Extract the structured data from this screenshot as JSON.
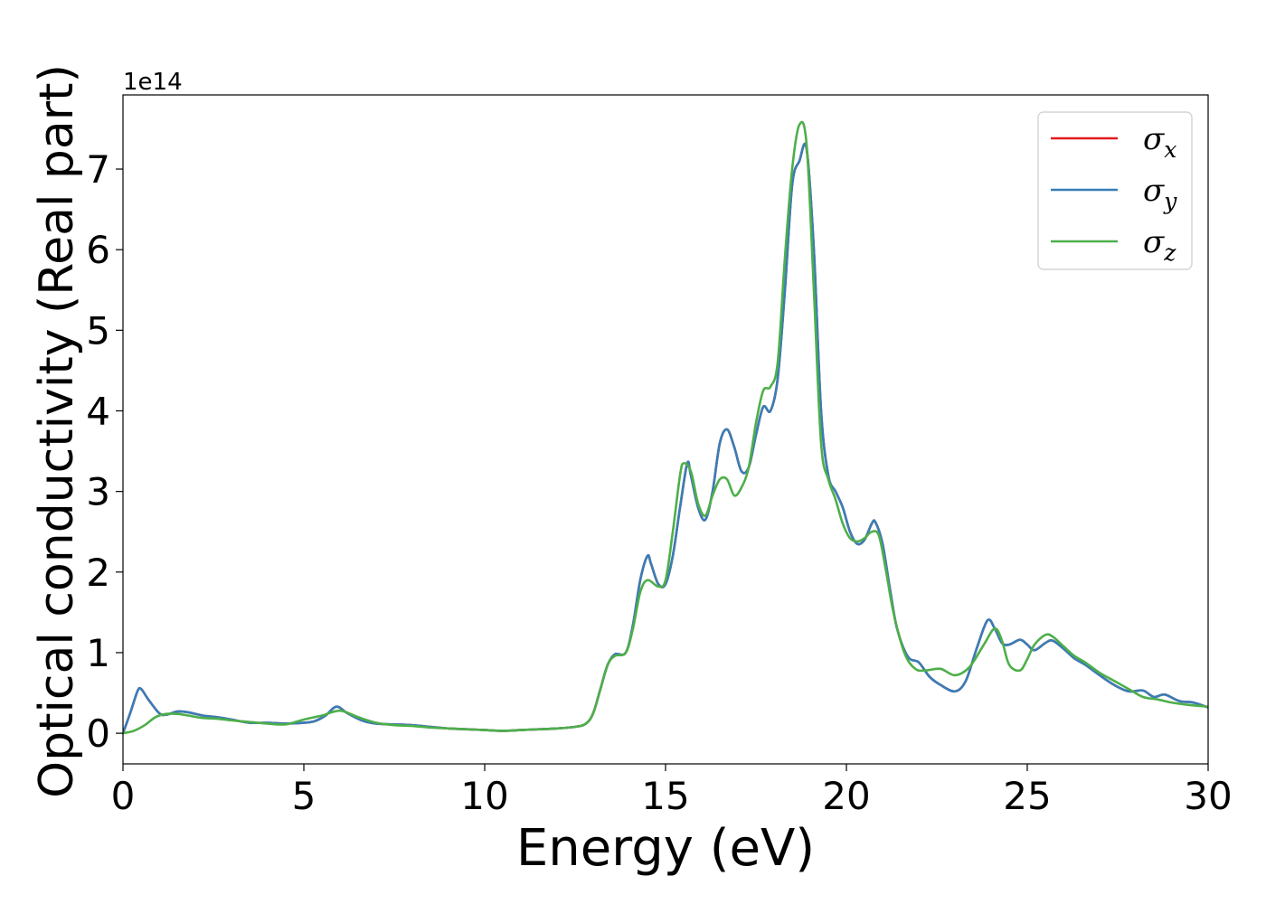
{
  "chart_data": {
    "type": "line",
    "xlabel": "Energy (eV)",
    "ylabel": "Optical conductivity (Real part)",
    "y_scale_label": "1e14",
    "xlim": [
      0,
      30
    ],
    "ylim": [
      -0.38,
      7.92
    ],
    "x_ticks": [
      0,
      5,
      10,
      15,
      20,
      25,
      30
    ],
    "y_ticks": [
      0,
      1,
      2,
      3,
      4,
      5,
      6,
      7
    ],
    "grid": false,
    "legend_position": "top-right",
    "legend": [
      {
        "symbol": "σ",
        "subscript": "x",
        "color": "#e41a1c"
      },
      {
        "symbol": "σ",
        "subscript": "y",
        "color": "#377eb8"
      },
      {
        "symbol": "σ",
        "subscript": "z",
        "color": "#4daf4a"
      }
    ],
    "series": [
      {
        "key": "x",
        "color": "#e41a1c",
        "x": [
          0,
          0.2,
          0.4,
          0.5,
          0.7,
          1.0,
          1.2,
          1.5,
          1.8,
          2.2,
          2.6,
          3.0,
          3.5,
          4.0,
          4.5,
          5.0,
          5.3,
          5.6,
          5.9,
          6.2,
          6.6,
          7.0,
          7.5,
          8.0,
          8.5,
          9.0,
          9.5,
          10.0,
          10.5,
          11.0,
          11.5,
          12.0,
          12.5,
          12.8,
          13.0,
          13.2,
          13.4,
          13.6,
          13.9,
          14.1,
          14.3,
          14.5,
          14.6,
          14.8,
          15.0,
          15.2,
          15.4,
          15.6,
          15.7,
          15.9,
          16.1,
          16.3,
          16.5,
          16.7,
          16.9,
          17.1,
          17.3,
          17.5,
          17.7,
          17.9,
          18.1,
          18.3,
          18.5,
          18.7,
          18.9,
          19.1,
          19.3,
          19.5,
          19.7,
          19.9,
          20.1,
          20.3,
          20.5,
          20.7,
          20.8,
          21.0,
          21.2,
          21.4,
          21.7,
          22.0,
          22.3,
          22.6,
          23.0,
          23.3,
          23.6,
          23.9,
          24.1,
          24.3,
          24.5,
          24.8,
          25.0,
          25.2,
          25.5,
          25.7,
          26.0,
          26.3,
          26.6,
          27.0,
          27.4,
          27.8,
          28.2,
          28.5,
          28.8,
          29.2,
          29.6,
          30.0
        ],
        "values": [
          0,
          0.25,
          0.52,
          0.55,
          0.42,
          0.25,
          0.23,
          0.27,
          0.26,
          0.22,
          0.2,
          0.17,
          0.13,
          0.13,
          0.12,
          0.13,
          0.15,
          0.22,
          0.33,
          0.25,
          0.16,
          0.12,
          0.11,
          0.1,
          0.08,
          0.06,
          0.05,
          0.04,
          0.03,
          0.04,
          0.05,
          0.06,
          0.08,
          0.12,
          0.25,
          0.55,
          0.85,
          0.98,
          1.0,
          1.35,
          1.9,
          2.2,
          2.1,
          1.85,
          1.85,
          2.2,
          2.8,
          3.35,
          3.2,
          2.8,
          2.65,
          3.0,
          3.6,
          3.77,
          3.55,
          3.25,
          3.3,
          3.7,
          4.05,
          4.0,
          4.4,
          5.5,
          6.8,
          7.1,
          7.25,
          6.0,
          4.0,
          3.2,
          3.0,
          2.8,
          2.5,
          2.35,
          2.4,
          2.6,
          2.62,
          2.35,
          1.8,
          1.3,
          0.95,
          0.88,
          0.7,
          0.6,
          0.52,
          0.65,
          1.05,
          1.4,
          1.3,
          1.12,
          1.1,
          1.16,
          1.1,
          1.03,
          1.12,
          1.15,
          1.05,
          0.93,
          0.85,
          0.72,
          0.6,
          0.52,
          0.53,
          0.45,
          0.48,
          0.4,
          0.38,
          0.32
        ]
      },
      {
        "key": "y",
        "color": "#377eb8",
        "x": [
          0,
          0.2,
          0.4,
          0.5,
          0.7,
          1.0,
          1.2,
          1.5,
          1.8,
          2.2,
          2.6,
          3.0,
          3.5,
          4.0,
          4.5,
          5.0,
          5.3,
          5.6,
          5.9,
          6.2,
          6.6,
          7.0,
          7.5,
          8.0,
          8.5,
          9.0,
          9.5,
          10.0,
          10.5,
          11.0,
          11.5,
          12.0,
          12.5,
          12.8,
          13.0,
          13.2,
          13.4,
          13.6,
          13.9,
          14.1,
          14.3,
          14.5,
          14.6,
          14.8,
          15.0,
          15.2,
          15.4,
          15.6,
          15.7,
          15.9,
          16.1,
          16.3,
          16.5,
          16.7,
          16.9,
          17.1,
          17.3,
          17.5,
          17.7,
          17.9,
          18.1,
          18.3,
          18.5,
          18.7,
          18.9,
          19.1,
          19.3,
          19.5,
          19.7,
          19.9,
          20.1,
          20.3,
          20.5,
          20.7,
          20.8,
          21.0,
          21.2,
          21.4,
          21.7,
          22.0,
          22.3,
          22.6,
          23.0,
          23.3,
          23.6,
          23.9,
          24.1,
          24.3,
          24.5,
          24.8,
          25.0,
          25.2,
          25.5,
          25.7,
          26.0,
          26.3,
          26.6,
          27.0,
          27.4,
          27.8,
          28.2,
          28.5,
          28.8,
          29.2,
          29.6,
          30.0
        ],
        "values": [
          0,
          0.25,
          0.52,
          0.55,
          0.42,
          0.25,
          0.23,
          0.27,
          0.26,
          0.22,
          0.2,
          0.17,
          0.13,
          0.13,
          0.12,
          0.13,
          0.15,
          0.22,
          0.33,
          0.25,
          0.16,
          0.12,
          0.11,
          0.1,
          0.08,
          0.06,
          0.05,
          0.04,
          0.03,
          0.04,
          0.05,
          0.06,
          0.08,
          0.12,
          0.25,
          0.55,
          0.85,
          0.98,
          1.0,
          1.35,
          1.9,
          2.2,
          2.1,
          1.85,
          1.85,
          2.2,
          2.8,
          3.35,
          3.2,
          2.8,
          2.65,
          3.0,
          3.6,
          3.77,
          3.55,
          3.25,
          3.3,
          3.7,
          4.05,
          4.0,
          4.4,
          5.5,
          6.8,
          7.1,
          7.25,
          6.0,
          4.0,
          3.2,
          3.0,
          2.8,
          2.5,
          2.35,
          2.4,
          2.6,
          2.62,
          2.35,
          1.8,
          1.3,
          0.95,
          0.88,
          0.7,
          0.6,
          0.52,
          0.65,
          1.05,
          1.4,
          1.3,
          1.12,
          1.1,
          1.16,
          1.1,
          1.03,
          1.12,
          1.15,
          1.05,
          0.93,
          0.85,
          0.72,
          0.6,
          0.52,
          0.53,
          0.45,
          0.48,
          0.4,
          0.38,
          0.32
        ]
      },
      {
        "key": "z",
        "color": "#4daf4a",
        "x": [
          0,
          0.3,
          0.6,
          0.9,
          1.2,
          1.5,
          1.8,
          2.2,
          2.6,
          3.0,
          3.5,
          4.0,
          4.5,
          5.0,
          5.5,
          6.0,
          6.5,
          7.0,
          7.5,
          8.0,
          8.5,
          9.0,
          9.5,
          10.0,
          10.5,
          11.0,
          11.5,
          12.0,
          12.5,
          12.8,
          13.0,
          13.2,
          13.4,
          13.6,
          13.9,
          14.1,
          14.3,
          14.5,
          14.8,
          15.0,
          15.2,
          15.4,
          15.5,
          15.7,
          15.9,
          16.1,
          16.3,
          16.5,
          16.7,
          16.9,
          17.1,
          17.3,
          17.5,
          17.7,
          17.9,
          18.1,
          18.3,
          18.5,
          18.7,
          18.9,
          19.1,
          19.3,
          19.5,
          19.7,
          19.9,
          20.1,
          20.3,
          20.5,
          20.7,
          20.9,
          21.1,
          21.3,
          21.6,
          21.9,
          22.2,
          22.6,
          23.0,
          23.4,
          23.8,
          24.1,
          24.3,
          24.5,
          24.8,
          25.0,
          25.2,
          25.5,
          25.7,
          26.0,
          26.3,
          26.6,
          27.0,
          27.4,
          27.8,
          28.2,
          28.6,
          29.0,
          29.5,
          30.0
        ],
        "values": [
          0,
          0.03,
          0.1,
          0.2,
          0.24,
          0.24,
          0.22,
          0.19,
          0.18,
          0.16,
          0.14,
          0.12,
          0.11,
          0.17,
          0.22,
          0.28,
          0.2,
          0.13,
          0.1,
          0.09,
          0.07,
          0.06,
          0.05,
          0.04,
          0.03,
          0.04,
          0.05,
          0.06,
          0.08,
          0.12,
          0.25,
          0.55,
          0.85,
          0.96,
          1.0,
          1.3,
          1.75,
          1.9,
          1.82,
          1.9,
          2.5,
          3.2,
          3.35,
          3.25,
          2.85,
          2.7,
          2.95,
          3.15,
          3.15,
          2.95,
          3.05,
          3.3,
          3.85,
          4.25,
          4.3,
          4.6,
          5.9,
          7.0,
          7.55,
          7.3,
          5.5,
          3.6,
          3.15,
          2.9,
          2.6,
          2.42,
          2.38,
          2.42,
          2.5,
          2.45,
          2.0,
          1.5,
          1.0,
          0.8,
          0.78,
          0.8,
          0.72,
          0.82,
          1.1,
          1.3,
          1.15,
          0.85,
          0.78,
          0.92,
          1.1,
          1.22,
          1.2,
          1.08,
          0.96,
          0.88,
          0.75,
          0.65,
          0.55,
          0.45,
          0.42,
          0.38,
          0.35,
          0.33
        ]
      }
    ]
  }
}
